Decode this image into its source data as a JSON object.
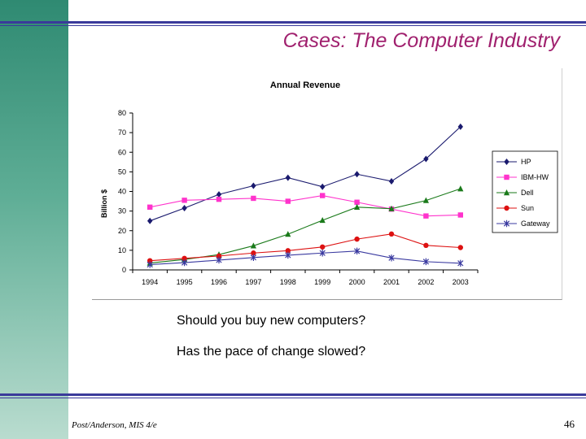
{
  "slide": {
    "title": "Cases: The Computer Industry",
    "questions": [
      "Should you buy new computers?",
      "Has the pace of change slowed?"
    ],
    "footer_left": "Post/Anderson, MIS 4/e",
    "page_number": "46"
  },
  "chart_data": {
    "type": "line",
    "title": "Annual Revenue",
    "xlabel": "",
    "ylabel": "Billion $",
    "categories": [
      "1994",
      "1995",
      "1996",
      "1997",
      "1998",
      "1999",
      "2000",
      "2001",
      "2002",
      "2003"
    ],
    "ylim": [
      0,
      80
    ],
    "yticks": [
      0,
      10,
      20,
      30,
      40,
      50,
      60,
      70,
      80
    ],
    "grid": false,
    "legend_position": "right",
    "series": [
      {
        "name": "HP",
        "color": "#1a1a6e",
        "marker": "diamond",
        "values": [
          25,
          31.5,
          38.5,
          42.9,
          47,
          42.4,
          48.8,
          45.2,
          56.6,
          73
        ]
      },
      {
        "name": "IBM-HW",
        "color": "#ff33cc",
        "marker": "square",
        "values": [
          32,
          35.5,
          36,
          36.5,
          35,
          37.9,
          34.5,
          31,
          27.5,
          28
        ]
      },
      {
        "name": "Dell",
        "color": "#1a7a1a",
        "marker": "triangle",
        "values": [
          3.5,
          5.3,
          7.8,
          12.3,
          18.2,
          25.3,
          32,
          31.2,
          35.4,
          41.4
        ]
      },
      {
        "name": "Sun",
        "color": "#dd1111",
        "marker": "circle",
        "values": [
          4.7,
          5.9,
          7.1,
          8.6,
          9.8,
          11.7,
          15.7,
          18.3,
          12.5,
          11.4
        ]
      },
      {
        "name": "Gateway",
        "color": "#3a3aa0",
        "marker": "asterisk",
        "values": [
          2.7,
          3.7,
          5,
          6.3,
          7.5,
          8.6,
          9.6,
          6.1,
          4.2,
          3.4
        ]
      }
    ]
  }
}
